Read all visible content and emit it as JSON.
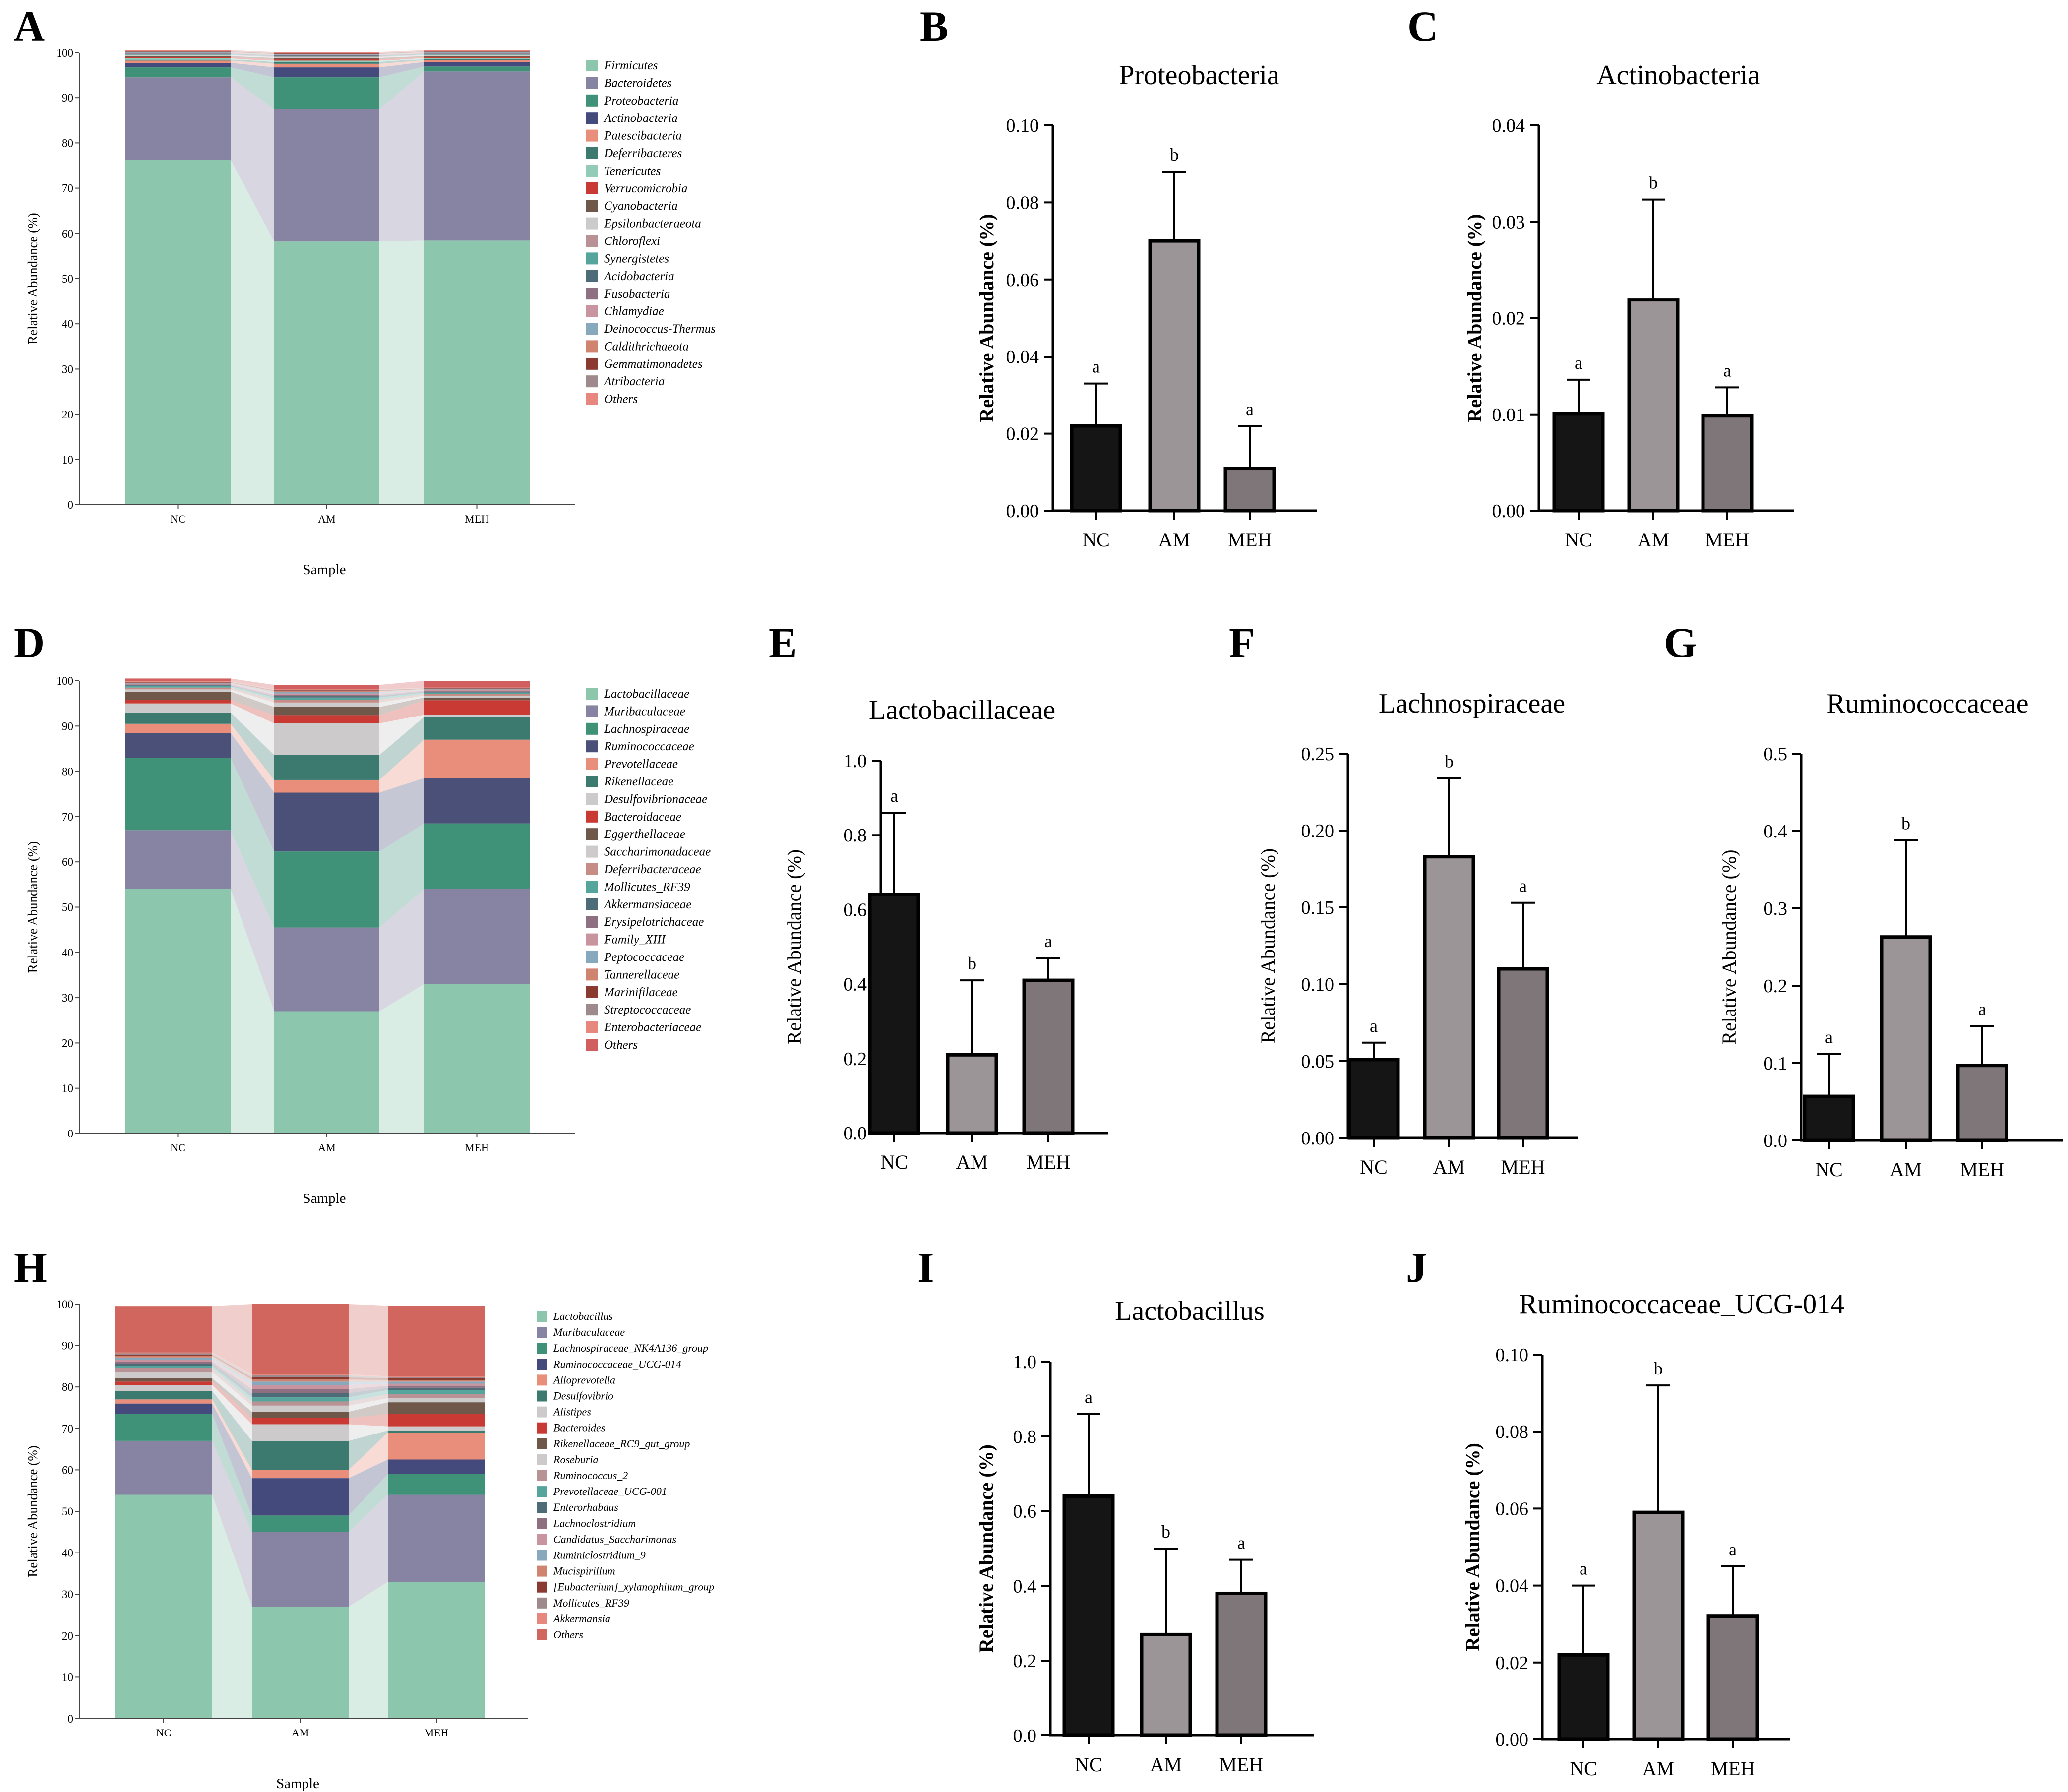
{
  "figure": {
    "panels": [
      "A",
      "B",
      "C",
      "D",
      "E",
      "F",
      "G",
      "H",
      "I",
      "J"
    ]
  },
  "colors": {
    "NC": "#151515",
    "AM": "#9b9597",
    "MEH": "#7e7679"
  },
  "chart_data": [
    {
      "id": "A",
      "type": "stacked_bar",
      "ylabel": "Relative Abundance (%)",
      "xlabel": "Sample",
      "ylim": [
        0,
        100
      ],
      "yticks": [
        0,
        10,
        20,
        30,
        40,
        50,
        60,
        70,
        80,
        90,
        100
      ],
      "categories": [
        "NC",
        "AM",
        "MEH"
      ],
      "series": [
        {
          "name": "Firmicutes",
          "color": "#8cc7ad",
          "values": [
            76.3,
            58.2,
            58.4
          ]
        },
        {
          "name": "Bacteroidetes",
          "color": "#8784a3",
          "values": [
            18.2,
            29.3,
            37.4
          ]
        },
        {
          "name": "Proteobacteria",
          "color": "#3f9278",
          "values": [
            2.2,
            7.0,
            1.1
          ]
        },
        {
          "name": "Actinobacteria",
          "color": "#444a7c",
          "values": [
            1.0,
            2.2,
            1.0
          ]
        },
        {
          "name": "Patescibacteria",
          "color": "#ea8e7c",
          "values": [
            0.5,
            0.8,
            0.4
          ]
        },
        {
          "name": "Deferribacteres",
          "color": "#3c7a70",
          "values": [
            0.3,
            0.4,
            0.3
          ]
        },
        {
          "name": "Tenericutes",
          "color": "#94cbb8",
          "values": [
            0.3,
            0.3,
            0.3
          ]
        },
        {
          "name": "Verrucomicrobia",
          "color": "#c93a35",
          "values": [
            0.3,
            0.4,
            0.2
          ]
        },
        {
          "name": "Cyanobacteria",
          "color": "#6f584a",
          "values": [
            0.2,
            0.3,
            0.2
          ]
        },
        {
          "name": "Epsilonbacteraeota",
          "color": "#cccaca",
          "values": [
            0.2,
            0.2,
            0.2
          ]
        },
        {
          "name": "Chloroflexi",
          "color": "#b89294",
          "values": [
            0.1,
            0.1,
            0.1
          ]
        },
        {
          "name": "Synergistetes",
          "color": "#55a59c",
          "values": [
            0.1,
            0.1,
            0.1
          ]
        },
        {
          "name": "Acidobacteria",
          "color": "#4e6c78",
          "values": [
            0.1,
            0.1,
            0.1
          ]
        },
        {
          "name": "Fusobacteria",
          "color": "#8e7080",
          "values": [
            0.1,
            0.1,
            0.1
          ]
        },
        {
          "name": "Chlamydiae",
          "color": "#c794a0",
          "values": [
            0.1,
            0.1,
            0.1
          ]
        },
        {
          "name": "Deinococcus-Thermus",
          "color": "#88a8be",
          "values": [
            0.1,
            0.1,
            0.1
          ]
        },
        {
          "name": "Caldithrichaeota",
          "color": "#d0836e",
          "values": [
            0.1,
            0.1,
            0.1
          ]
        },
        {
          "name": "Gemmatimonadetes",
          "color": "#8a3a30",
          "values": [
            0.1,
            0.1,
            0.1
          ]
        },
        {
          "name": "Atribacteria",
          "color": "#9e8a8c",
          "values": [
            0.1,
            0.1,
            0.1
          ]
        },
        {
          "name": "Others",
          "color": "#e8877e",
          "values": [
            0.2,
            0.2,
            0.2
          ]
        }
      ]
    },
    {
      "id": "B",
      "type": "bar",
      "title": "Proteobacteria",
      "ylabel": "Relative Abundance (%)",
      "ylabel_bold": true,
      "ylim": [
        0,
        0.1
      ],
      "yticks": [
        "0.00",
        "0.02",
        "0.04",
        "0.06",
        "0.08",
        "0.10"
      ],
      "categories": [
        "NC",
        "AM",
        "MEH"
      ],
      "values": [
        0.022,
        0.07,
        0.011
      ],
      "errors": [
        0.011,
        0.018,
        0.011
      ],
      "letters": [
        "a",
        "b",
        "a"
      ]
    },
    {
      "id": "C",
      "type": "bar",
      "title": "Actinobacteria",
      "ylabel": "Relative Abundance (%)",
      "ylabel_bold": true,
      "ylim": [
        0,
        0.04
      ],
      "yticks": [
        "0.00",
        "0.01",
        "0.02",
        "0.03",
        "0.04"
      ],
      "categories": [
        "NC",
        "AM",
        "MEH"
      ],
      "values": [
        0.0101,
        0.0219,
        0.0099
      ],
      "errors": [
        0.0035,
        0.0104,
        0.0029
      ],
      "letters": [
        "a",
        "b",
        "a"
      ]
    },
    {
      "id": "D",
      "type": "stacked_bar",
      "ylabel": "Relative Abundance (%)",
      "xlabel": "Sample",
      "ylim": [
        0,
        100
      ],
      "yticks": [
        0,
        10,
        20,
        30,
        40,
        50,
        60,
        70,
        80,
        90,
        100
      ],
      "categories": [
        "NC",
        "AM",
        "MEH"
      ],
      "series": [
        {
          "name": "Lactobacillaceae",
          "color": "#8cc7ad",
          "values": [
            54.0,
            27.0,
            33.0
          ]
        },
        {
          "name": "Muribaculaceae",
          "color": "#8784a3",
          "values": [
            13.0,
            18.5,
            21.0
          ]
        },
        {
          "name": "Lachnospiraceae",
          "color": "#3f9278",
          "values": [
            16.0,
            16.8,
            14.5
          ]
        },
        {
          "name": "Ruminococcaceae",
          "color": "#4a5078",
          "values": [
            5.5,
            13.0,
            10.0
          ]
        },
        {
          "name": "Prevotellaceae",
          "color": "#ea8e7c",
          "values": [
            2.0,
            2.8,
            8.5
          ]
        },
        {
          "name": "Rikenellaceae",
          "color": "#3c7a70",
          "values": [
            2.5,
            5.5,
            5.0
          ]
        },
        {
          "name": "Desulfovibrionaceae",
          "color": "#cccaca",
          "values": [
            2.0,
            7.0,
            0.5
          ]
        },
        {
          "name": "Bacteroidaceae",
          "color": "#c93a35",
          "values": [
            0.8,
            1.8,
            3.2
          ]
        },
        {
          "name": "Eggerthellaceae",
          "color": "#6f584a",
          "values": [
            1.8,
            1.8,
            0.6
          ]
        },
        {
          "name": "Saccharimonadaceae",
          "color": "#cccaca",
          "values": [
            0.5,
            1.0,
            0.4
          ]
        },
        {
          "name": "Deferribacteraceae",
          "color": "#c58d86",
          "values": [
            0.4,
            0.6,
            0.4
          ]
        },
        {
          "name": "Mollicutes_RF39",
          "color": "#55a59c",
          "values": [
            0.3,
            0.5,
            0.3
          ]
        },
        {
          "name": "Akkermansiaceae",
          "color": "#4e6c78",
          "values": [
            0.2,
            0.3,
            0.2
          ]
        },
        {
          "name": "Erysipelotrichaceae",
          "color": "#8e7080",
          "values": [
            0.2,
            0.3,
            0.2
          ]
        },
        {
          "name": "Family_XIII",
          "color": "#c794a0",
          "values": [
            0.2,
            0.3,
            0.2
          ]
        },
        {
          "name": "Peptococcaceae",
          "color": "#88a8be",
          "values": [
            0.1,
            0.3,
            0.1
          ]
        },
        {
          "name": "Tannerellaceae",
          "color": "#d0836e",
          "values": [
            0.1,
            0.2,
            0.1
          ]
        },
        {
          "name": "Marinifilaceae",
          "color": "#8a3a30",
          "values": [
            0.1,
            0.2,
            0.1
          ]
        },
        {
          "name": "Streptococcaceae",
          "color": "#9e8a8c",
          "values": [
            0.1,
            0.1,
            0.1
          ]
        },
        {
          "name": "Enterobacteriaceae",
          "color": "#e8877e",
          "values": [
            0.1,
            0.1,
            0.1
          ]
        },
        {
          "name": "Others",
          "color": "#d25f5f",
          "values": [
            0.6,
            1.0,
            1.5
          ]
        }
      ]
    },
    {
      "id": "E",
      "type": "bar",
      "title": "Lactobacillaceae",
      "ylabel": "Relative Abundance (%)",
      "ylabel_bold": false,
      "ylim": [
        0,
        1.0
      ],
      "yticks": [
        "0.0",
        "0.2",
        "0.4",
        "0.6",
        "0.8",
        "1.0"
      ],
      "categories": [
        "NC",
        "AM",
        "MEH"
      ],
      "values": [
        0.64,
        0.21,
        0.41
      ],
      "errors": [
        0.22,
        0.2,
        0.06
      ],
      "letters": [
        "a",
        "b",
        "a"
      ]
    },
    {
      "id": "F",
      "type": "bar",
      "title": "Lachnospiraceae",
      "ylabel": "Relative Abundance (%)",
      "ylabel_bold": false,
      "ylim": [
        0,
        0.25
      ],
      "yticks": [
        "0.00",
        "0.05",
        "0.10",
        "0.15",
        "0.20",
        "0.25"
      ],
      "categories": [
        "NC",
        "AM",
        "MEH"
      ],
      "values": [
        0.051,
        0.183,
        0.11
      ],
      "errors": [
        0.011,
        0.051,
        0.043
      ],
      "letters": [
        "a",
        "b",
        "a"
      ]
    },
    {
      "id": "G",
      "type": "bar",
      "title": "Ruminococcaceae",
      "ylabel": "Relative Abundance (%)",
      "ylabel_bold": false,
      "ylim": [
        0,
        0.5
      ],
      "yticks": [
        "0.0",
        "0.1",
        "0.2",
        "0.3",
        "0.4",
        "0.5"
      ],
      "categories": [
        "NC",
        "AM",
        "MEH"
      ],
      "values": [
        0.057,
        0.263,
        0.097
      ],
      "errors": [
        0.055,
        0.125,
        0.051
      ],
      "letters": [
        "a",
        "b",
        "a"
      ]
    },
    {
      "id": "H",
      "type": "stacked_bar",
      "ylabel": "Relative Abundance (%)",
      "xlabel": "Sample",
      "ylim": [
        0,
        100
      ],
      "yticks": [
        0,
        10,
        20,
        30,
        40,
        50,
        60,
        70,
        80,
        90,
        100
      ],
      "categories": [
        "NC",
        "AM",
        "MEH"
      ],
      "series": [
        {
          "name": "Lactobacillus",
          "color": "#8cc7ad",
          "values": [
            54.0,
            27.0,
            33.0
          ]
        },
        {
          "name": "Muribaculaceae",
          "color": "#8784a3",
          "values": [
            13.0,
            18.0,
            21.0
          ]
        },
        {
          "name": "Lachnospiraceae_NK4A136_group",
          "color": "#3f9278",
          "values": [
            6.5,
            4.0,
            5.0
          ]
        },
        {
          "name": "Ruminococcaceae_UCG-014",
          "color": "#444a7c",
          "values": [
            2.5,
            9.0,
            3.5
          ]
        },
        {
          "name": "Alloprevotella",
          "color": "#ea8e7c",
          "values": [
            1.0,
            2.0,
            6.5
          ]
        },
        {
          "name": "Desulfovibrio",
          "color": "#3c7a70",
          "values": [
            2.0,
            7.0,
            0.5
          ]
        },
        {
          "name": "Alistipes",
          "color": "#cccaca",
          "values": [
            1.5,
            4.0,
            1.0
          ]
        },
        {
          "name": "Bacteroides",
          "color": "#c93a35",
          "values": [
            0.8,
            1.5,
            3.0
          ]
        },
        {
          "name": "Rikenellaceae_RC9_gut_group",
          "color": "#6f584a",
          "values": [
            0.8,
            1.5,
            2.8
          ]
        },
        {
          "name": "Roseburia",
          "color": "#cccaca",
          "values": [
            1.5,
            1.5,
            1.0
          ]
        },
        {
          "name": "Ruminococcus_2",
          "color": "#b89294",
          "values": [
            1.0,
            1.0,
            1.0
          ]
        },
        {
          "name": "Prevotellaceae_UCG-001",
          "color": "#55a59c",
          "values": [
            0.5,
            1.0,
            1.0
          ]
        },
        {
          "name": "Enterorhabdus",
          "color": "#4e6c78",
          "values": [
            0.5,
            1.0,
            0.5
          ]
        },
        {
          "name": "Lachnoclostridium",
          "color": "#8e7080",
          "values": [
            0.5,
            1.0,
            0.5
          ]
        },
        {
          "name": "Candidatus_Saccharimonas",
          "color": "#c794a0",
          "values": [
            0.5,
            1.0,
            0.5
          ]
        },
        {
          "name": "Ruminiclostridium_9",
          "color": "#88a8be",
          "values": [
            0.5,
            0.8,
            0.5
          ]
        },
        {
          "name": "Mucispirillum",
          "color": "#d0836e",
          "values": [
            0.4,
            0.5,
            0.4
          ]
        },
        {
          "name": "[Eubacterium]_xylanophilum_group",
          "color": "#8a3a30",
          "values": [
            0.3,
            0.5,
            0.4
          ]
        },
        {
          "name": "Mollicutes_RF39",
          "color": "#9e8a8c",
          "values": [
            0.3,
            0.5,
            0.3
          ]
        },
        {
          "name": "Akkermansia",
          "color": "#e8877e",
          "values": [
            0.2,
            0.3,
            0.2
          ]
        },
        {
          "name": "Others",
          "color": "#d0665e",
          "values": [
            11.2,
            16.9,
            17.0
          ]
        }
      ]
    },
    {
      "id": "I",
      "type": "bar",
      "title": "Lactobacillus",
      "ylabel": "Relative Abundance (%)",
      "ylabel_bold": true,
      "ylim": [
        0,
        1.0
      ],
      "yticks": [
        "0.0",
        "0.2",
        "0.4",
        "0.6",
        "0.8",
        "1.0"
      ],
      "categories": [
        "NC",
        "AM",
        "MEH"
      ],
      "values": [
        0.64,
        0.27,
        0.38
      ],
      "errors": [
        0.22,
        0.23,
        0.09
      ],
      "letters": [
        "a",
        "b",
        "a"
      ]
    },
    {
      "id": "J",
      "type": "bar",
      "title": "Ruminococcaceae_UCG-014",
      "ylabel": "Relative Abundance (%)",
      "ylabel_bold": true,
      "ylim": [
        0,
        0.1
      ],
      "yticks": [
        "0.00",
        "0.02",
        "0.04",
        "0.06",
        "0.08",
        "0.10"
      ],
      "categories": [
        "NC",
        "AM",
        "MEH"
      ],
      "values": [
        0.022,
        0.059,
        0.032
      ],
      "errors": [
        0.018,
        0.033,
        0.013
      ],
      "letters": [
        "a",
        "b",
        "a"
      ]
    }
  ]
}
